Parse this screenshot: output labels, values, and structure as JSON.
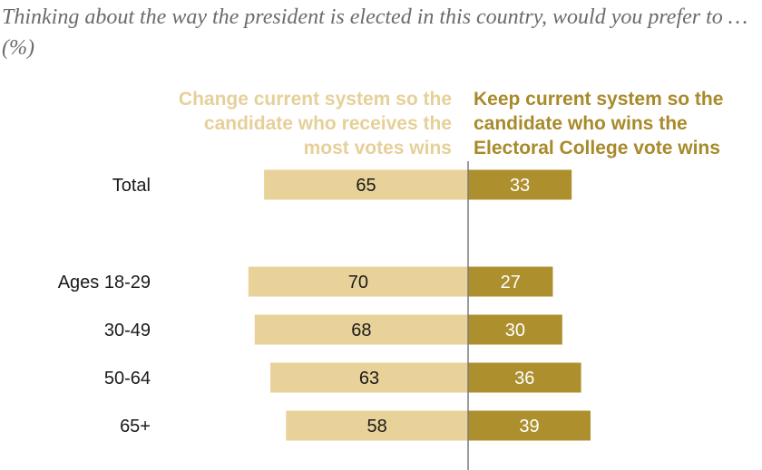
{
  "chart_data": {
    "type": "bar",
    "orientation": "horizontal-diverging",
    "title": "Thinking about the way the president is elected in this country, would you prefer to … (%)",
    "categories": [
      "Total",
      "Ages 18-29",
      "30-49",
      "50-64",
      "65+"
    ],
    "series": [
      {
        "name": "Change current system so the candidate who receives the most votes wins",
        "direction": "left",
        "color": "#e8d29a",
        "values": [
          65,
          70,
          68,
          63,
          58
        ]
      },
      {
        "name": "Keep current system so the candidate who wins the Electoral College vote wins",
        "direction": "right",
        "color": "#ad8f2d",
        "values": [
          33,
          27,
          30,
          36,
          39
        ]
      }
    ],
    "xlim": [
      -70,
      40
    ],
    "grid": false,
    "legend_placement": "top"
  },
  "colors": {
    "title_text": "#6b6b6b",
    "left_legend_text": "#e6d09a",
    "right_legend_text": "#a88a2a",
    "left_label_text": "#1a1a1a",
    "right_label_text": "#ffffff",
    "axis_line": "#7a7a7a"
  }
}
